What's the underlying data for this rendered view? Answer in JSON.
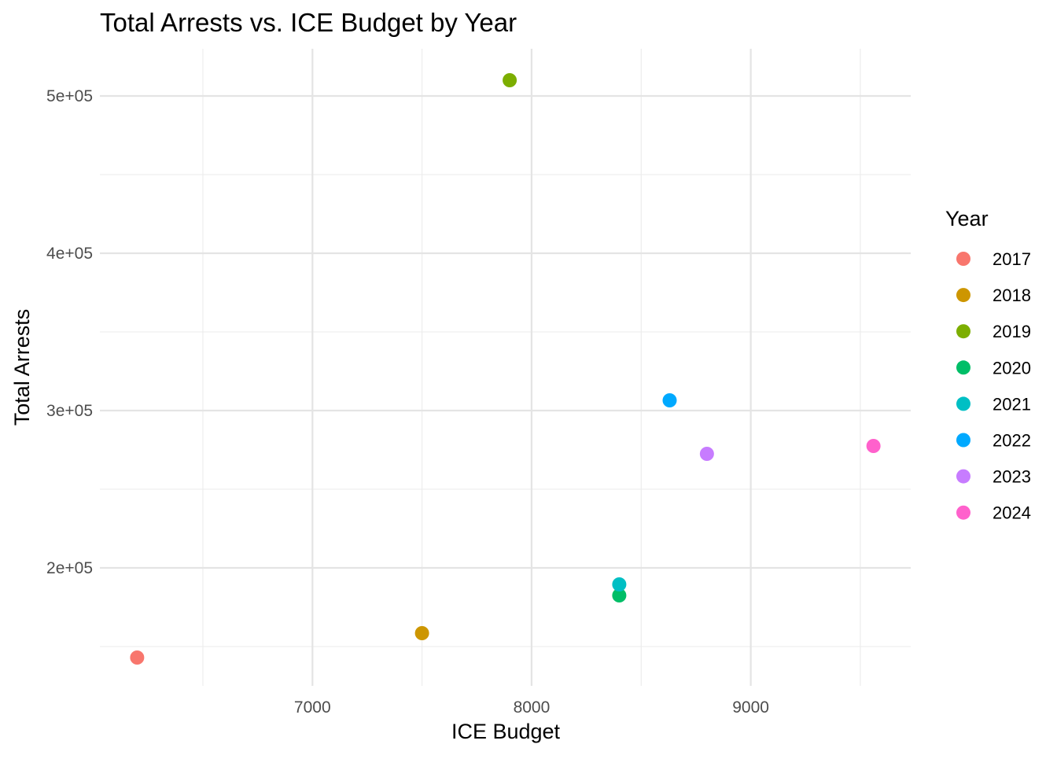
{
  "chart_data": {
    "type": "scatter",
    "title": "Total Arrests vs. ICE Budget by Year",
    "xlabel": "ICE Budget",
    "ylabel": "Total Arrests",
    "xlim": [
      6030,
      9730
    ],
    "ylim": [
      125000,
      530000
    ],
    "x_major_ticks": [
      7000,
      8000,
      9000
    ],
    "x_minor_ticks": [
      6500,
      7500,
      8500,
      9500
    ],
    "y_major_ticks": [
      200000,
      300000,
      400000,
      500000
    ],
    "y_minor_ticks": [
      150000,
      250000,
      350000,
      450000
    ],
    "x_tick_labels": [
      "7000",
      "8000",
      "9000"
    ],
    "y_tick_labels": [
      "2e+05",
      "3e+05",
      "4e+05",
      "5e+05"
    ],
    "grid": true,
    "legend_title": "Year",
    "legend_position": "right",
    "points": [
      {
        "year": "2017",
        "x": 6200,
        "y": 143000,
        "color": "#F8766D"
      },
      {
        "year": "2018",
        "x": 7500,
        "y": 158500,
        "color": "#CD9600"
      },
      {
        "year": "2019",
        "x": 7900,
        "y": 510000,
        "color": "#7CAE00"
      },
      {
        "year": "2020",
        "x": 8400,
        "y": 182500,
        "color": "#00BE67"
      },
      {
        "year": "2021",
        "x": 8400,
        "y": 189500,
        "color": "#00BFC4"
      },
      {
        "year": "2022",
        "x": 8630,
        "y": 306500,
        "color": "#00A9FF"
      },
      {
        "year": "2023",
        "x": 8800,
        "y": 272500,
        "color": "#C77CFF"
      },
      {
        "year": "2024",
        "x": 9560,
        "y": 277500,
        "color": "#FF61CC"
      }
    ]
  }
}
